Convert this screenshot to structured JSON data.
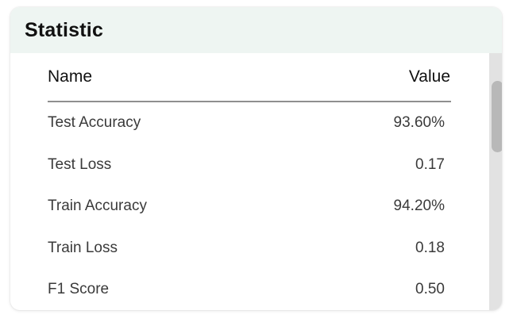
{
  "panel": {
    "title": "Statistic"
  },
  "table": {
    "columns": [
      "Name",
      "Value"
    ],
    "rows": [
      {
        "name": "Test Accuracy",
        "value": "93.60%"
      },
      {
        "name": "Test Loss",
        "value": "0.17"
      },
      {
        "name": "Train Accuracy",
        "value": "94.20%"
      },
      {
        "name": "Train Loss",
        "value": "0.18"
      },
      {
        "name": "F1 Score",
        "value": "0.50"
      }
    ]
  },
  "colors": {
    "header_bg": "#eef5f2",
    "divider": "#8f8f8f",
    "scrollbar_track": "#e2e2e2",
    "scrollbar_thumb": "#b8b8b8"
  },
  "scroll": {
    "position_fraction": 0.0
  }
}
